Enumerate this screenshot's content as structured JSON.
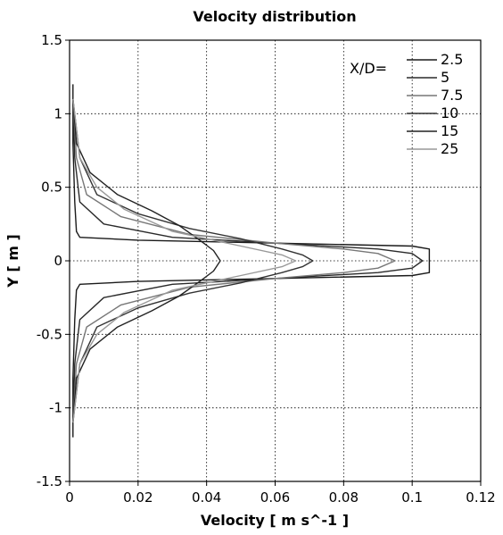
{
  "chart_data": {
    "type": "line",
    "title": "Velocity distribution",
    "xlabel": "Velocity [ m s^-1 ]",
    "ylabel": "Y [ m ]",
    "xlim": [
      0,
      0.12
    ],
    "ylim": [
      -1.5,
      1.5
    ],
    "x_ticks": [
      "0",
      "0.02",
      "0.04",
      "0.06",
      "0.08",
      "0.1",
      "0.12"
    ],
    "y_ticks": [
      "1.5",
      "1",
      "0.5",
      "0",
      "-0.5",
      "-1",
      "-1.5"
    ],
    "x_tick_values": [
      0,
      0.02,
      0.04,
      0.06,
      0.08,
      0.1,
      0.12
    ],
    "y_tick_values": [
      1.5,
      1,
      0.5,
      0,
      -0.5,
      -1,
      -1.5
    ],
    "grid": true,
    "legend": {
      "title": "X/D=",
      "placement": "top-right"
    },
    "series": [
      {
        "name": "2.5",
        "color": "#1a1a1a",
        "points": [
          [
            0.001,
            1.2
          ],
          [
            0.001,
            0.8
          ],
          [
            0.0015,
            0.4
          ],
          [
            0.002,
            0.2
          ],
          [
            0.003,
            0.16
          ],
          [
            0.02,
            0.14
          ],
          [
            0.06,
            0.12
          ],
          [
            0.1,
            0.1
          ],
          [
            0.105,
            0.08
          ],
          [
            0.105,
            0.0
          ],
          [
            0.105,
            -0.08
          ],
          [
            0.1,
            -0.1
          ],
          [
            0.06,
            -0.12
          ],
          [
            0.02,
            -0.14
          ],
          [
            0.003,
            -0.16
          ],
          [
            0.002,
            -0.2
          ],
          [
            0.0015,
            -0.4
          ],
          [
            0.001,
            -0.8
          ],
          [
            0.001,
            -1.2
          ]
        ]
      },
      {
        "name": "5",
        "color": "#2a2a2a",
        "points": [
          [
            0.001,
            1.1
          ],
          [
            0.0015,
            0.7
          ],
          [
            0.003,
            0.4
          ],
          [
            0.01,
            0.25
          ],
          [
            0.03,
            0.16
          ],
          [
            0.06,
            0.12
          ],
          [
            0.09,
            0.08
          ],
          [
            0.1,
            0.05
          ],
          [
            0.103,
            0.0
          ],
          [
            0.1,
            -0.05
          ],
          [
            0.09,
            -0.08
          ],
          [
            0.06,
            -0.12
          ],
          [
            0.03,
            -0.16
          ],
          [
            0.01,
            -0.25
          ],
          [
            0.003,
            -0.4
          ],
          [
            0.0015,
            -0.7
          ],
          [
            0.001,
            -1.1
          ]
        ]
      },
      {
        "name": "7.5",
        "color": "#777777",
        "points": [
          [
            0.001,
            1.1
          ],
          [
            0.002,
            0.7
          ],
          [
            0.005,
            0.45
          ],
          [
            0.015,
            0.3
          ],
          [
            0.035,
            0.18
          ],
          [
            0.06,
            0.12
          ],
          [
            0.08,
            0.08
          ],
          [
            0.09,
            0.05
          ],
          [
            0.095,
            0.0
          ],
          [
            0.09,
            -0.05
          ],
          [
            0.08,
            -0.08
          ],
          [
            0.06,
            -0.12
          ],
          [
            0.035,
            -0.18
          ],
          [
            0.015,
            -0.3
          ],
          [
            0.005,
            -0.45
          ],
          [
            0.002,
            -0.7
          ],
          [
            0.001,
            -1.1
          ]
        ]
      },
      {
        "name": "10",
        "color": "#333333",
        "points": [
          [
            0.001,
            1.1
          ],
          [
            0.003,
            0.7
          ],
          [
            0.008,
            0.45
          ],
          [
            0.02,
            0.32
          ],
          [
            0.035,
            0.22
          ],
          [
            0.05,
            0.15
          ],
          [
            0.062,
            0.08
          ],
          [
            0.068,
            0.04
          ],
          [
            0.071,
            0.0
          ],
          [
            0.068,
            -0.04
          ],
          [
            0.062,
            -0.08
          ],
          [
            0.05,
            -0.15
          ],
          [
            0.035,
            -0.22
          ],
          [
            0.02,
            -0.32
          ],
          [
            0.008,
            -0.45
          ],
          [
            0.003,
            -0.7
          ],
          [
            0.001,
            -1.1
          ]
        ]
      },
      {
        "name": "15",
        "color": "#222222",
        "points": [
          [
            0.001,
            1.1
          ],
          [
            0.002,
            0.8
          ],
          [
            0.006,
            0.6
          ],
          [
            0.014,
            0.45
          ],
          [
            0.024,
            0.34
          ],
          [
            0.032,
            0.24
          ],
          [
            0.038,
            0.14
          ],
          [
            0.042,
            0.07
          ],
          [
            0.044,
            0.0
          ],
          [
            0.042,
            -0.07
          ],
          [
            0.038,
            -0.14
          ],
          [
            0.032,
            -0.24
          ],
          [
            0.024,
            -0.34
          ],
          [
            0.014,
            -0.45
          ],
          [
            0.006,
            -0.6
          ],
          [
            0.002,
            -0.8
          ],
          [
            0.001,
            -1.1
          ]
        ]
      },
      {
        "name": "25",
        "color": "#999999",
        "points": [
          [
            0.001,
            1.1
          ],
          [
            0.003,
            0.7
          ],
          [
            0.008,
            0.5
          ],
          [
            0.016,
            0.35
          ],
          [
            0.03,
            0.2
          ],
          [
            0.05,
            0.1
          ],
          [
            0.062,
            0.04
          ],
          [
            0.066,
            0.0
          ],
          [
            0.062,
            -0.04
          ],
          [
            0.05,
            -0.1
          ],
          [
            0.03,
            -0.2
          ],
          [
            0.016,
            -0.35
          ],
          [
            0.008,
            -0.5
          ],
          [
            0.003,
            -0.7
          ],
          [
            0.001,
            -1.1
          ]
        ]
      }
    ]
  }
}
